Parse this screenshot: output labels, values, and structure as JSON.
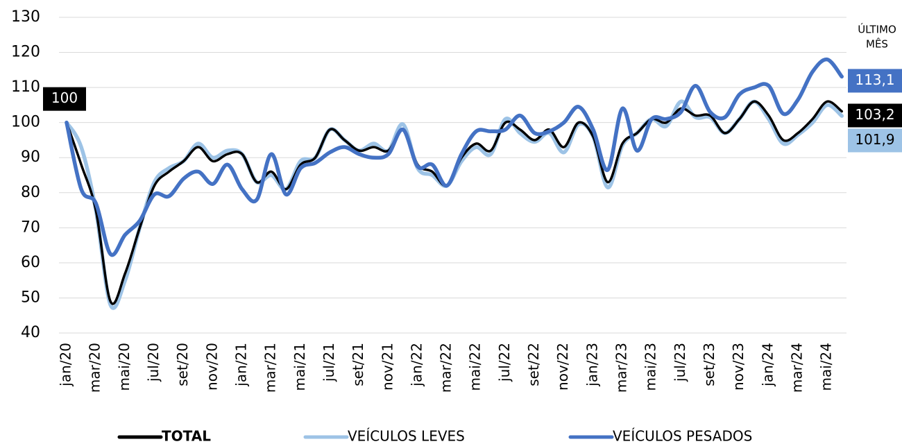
{
  "chart_data": {
    "type": "line",
    "categories": [
      "jan/20",
      null,
      "mar/20",
      null,
      "mai/20",
      null,
      "jul/20",
      null,
      "set/20",
      null,
      "nov/20",
      null,
      "jan/21",
      null,
      "mar/21",
      null,
      "mai/21",
      null,
      "jul/21",
      null,
      "set/21",
      null,
      "nov/21",
      null,
      "jan/22",
      null,
      "mar/22",
      null,
      "mai/22",
      null,
      "jul/22",
      null,
      "set/22",
      null,
      "nov/22",
      null,
      "jan/23",
      null,
      "mar/23",
      null,
      "mai/23",
      null,
      "jul/23",
      null,
      "set/23",
      null,
      "nov/23",
      null,
      "jan/24",
      null,
      "mar/24",
      null,
      "mai/24",
      null
    ],
    "series": [
      {
        "name": "TOTAL",
        "color": "#000000",
        "values": [
          100,
          88,
          75,
          49,
          57,
          70,
          82,
          86,
          89,
          93,
          89,
          91,
          91,
          83,
          86,
          81,
          88,
          90,
          98,
          95,
          92,
          93,
          92,
          98,
          88,
          86,
          82,
          90,
          94,
          92,
          100,
          98,
          95,
          98,
          93,
          100,
          96,
          83,
          94,
          97,
          101,
          100,
          104,
          102,
          102,
          97,
          101,
          106,
          102,
          95,
          97,
          101,
          106,
          103.2
        ],
        "value_labels": [
          "100",
          null,
          null,
          null,
          null,
          null,
          null,
          null,
          null,
          null,
          null,
          null,
          null,
          null,
          null,
          null,
          null,
          null,
          null,
          null,
          null,
          null,
          null,
          null,
          null,
          null,
          null,
          null,
          null,
          null,
          null,
          null,
          null,
          null,
          null,
          null,
          null,
          null,
          null,
          null,
          null,
          null,
          null,
          null,
          null,
          null,
          null,
          null,
          null,
          null,
          null,
          null,
          null,
          "103,2"
        ]
      },
      {
        "name": "VEÍCULOS LEVES",
        "color": "#9dc3e6",
        "values": [
          100,
          93,
          75,
          48,
          55,
          70,
          83,
          87,
          89,
          94,
          90,
          92,
          91,
          83,
          85,
          81,
          89,
          90,
          98,
          95,
          92,
          94,
          92,
          99.5,
          87,
          85,
          82,
          89,
          93,
          91,
          101,
          97,
          94.5,
          97,
          91.5,
          99.5,
          96,
          81.5,
          93.5,
          97,
          101,
          99,
          106,
          101.5,
          101.5,
          97,
          101,
          106,
          101,
          94,
          96.5,
          100,
          105,
          101.9
        ],
        "value_labels": [
          null,
          null,
          null,
          null,
          null,
          null,
          null,
          null,
          null,
          null,
          null,
          null,
          null,
          null,
          null,
          null,
          null,
          null,
          null,
          null,
          null,
          null,
          null,
          null,
          null,
          null,
          null,
          null,
          null,
          null,
          null,
          null,
          null,
          null,
          null,
          null,
          null,
          null,
          null,
          null,
          null,
          null,
          null,
          null,
          null,
          null,
          null,
          null,
          null,
          null,
          null,
          null,
          null,
          "101,9"
        ]
      },
      {
        "name": "VEÍCULOS PESADOS",
        "color": "#4472c4",
        "values": [
          100,
          81,
          77,
          62.5,
          68,
          72,
          79.5,
          79,
          84,
          86,
          82.5,
          88,
          81,
          78,
          91,
          79.5,
          87,
          88.5,
          91.5,
          93,
          91,
          90,
          91,
          98,
          87.5,
          88,
          82,
          91,
          97.5,
          97.5,
          98,
          102,
          97,
          97.5,
          100,
          104.5,
          98,
          86.5,
          104,
          92,
          101,
          101,
          103,
          110.5,
          103,
          101.5,
          108,
          110,
          110.5,
          102.5,
          106.5,
          114.5,
          118,
          113.1
        ],
        "value_labels": [
          null,
          null,
          null,
          null,
          null,
          null,
          null,
          null,
          null,
          null,
          null,
          null,
          null,
          null,
          null,
          null,
          null,
          null,
          null,
          null,
          null,
          null,
          null,
          null,
          null,
          null,
          null,
          null,
          null,
          null,
          null,
          null,
          null,
          null,
          null,
          null,
          null,
          null,
          null,
          null,
          null,
          null,
          null,
          null,
          null,
          null,
          null,
          null,
          null,
          null,
          null,
          null,
          null,
          "113,1"
        ]
      }
    ],
    "annotation_lines": [
      "ÚLTIMO",
      "MÊS"
    ],
    "ylim": [
      40,
      130
    ],
    "yticks": [
      40,
      50,
      60,
      70,
      80,
      90,
      100,
      110,
      120,
      130
    ],
    "grid": true,
    "legend": "bottom"
  }
}
